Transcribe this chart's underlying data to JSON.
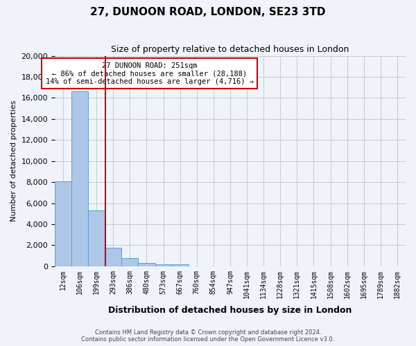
{
  "title": "27, DUNOON ROAD, LONDON, SE23 3TD",
  "subtitle": "Size of property relative to detached houses in London",
  "xlabel": "Distribution of detached houses by size in London",
  "ylabel": "Number of detached properties",
  "bin_labels": [
    "12sqm",
    "106sqm",
    "199sqm",
    "293sqm",
    "386sqm",
    "480sqm",
    "573sqm",
    "667sqm",
    "760sqm",
    "854sqm",
    "947sqm",
    "1041sqm",
    "1134sqm",
    "1228sqm",
    "1321sqm",
    "1415sqm",
    "1508sqm",
    "1602sqm",
    "1695sqm",
    "1789sqm",
    "1882sqm"
  ],
  "bar_values": [
    8100,
    16600,
    5300,
    1800,
    750,
    300,
    200,
    175,
    0,
    0,
    0,
    0,
    0,
    0,
    0,
    0,
    0,
    0,
    0,
    0,
    0
  ],
  "bar_color": "#aec6e8",
  "bar_edge_color": "#5a9fd4",
  "grid_color": "#cccccc",
  "vline_color": "#cc0000",
  "annotation_text": "27 DUNOON ROAD: 251sqm\n← 86% of detached houses are smaller (28,188)\n14% of semi-detached houses are larger (4,716) →",
  "annotation_box_color": "#ffffff",
  "annotation_border_color": "#cc0000",
  "ylim": [
    0,
    20000
  ],
  "yticks": [
    0,
    2000,
    4000,
    6000,
    8000,
    10000,
    12000,
    14000,
    16000,
    18000,
    20000
  ],
  "footer_line1": "Contains HM Land Registry data © Crown copyright and database right 2024.",
  "footer_line2": "Contains public sector information licensed under the Open Government Licence v3.0.",
  "background_color": "#f0f4fa"
}
